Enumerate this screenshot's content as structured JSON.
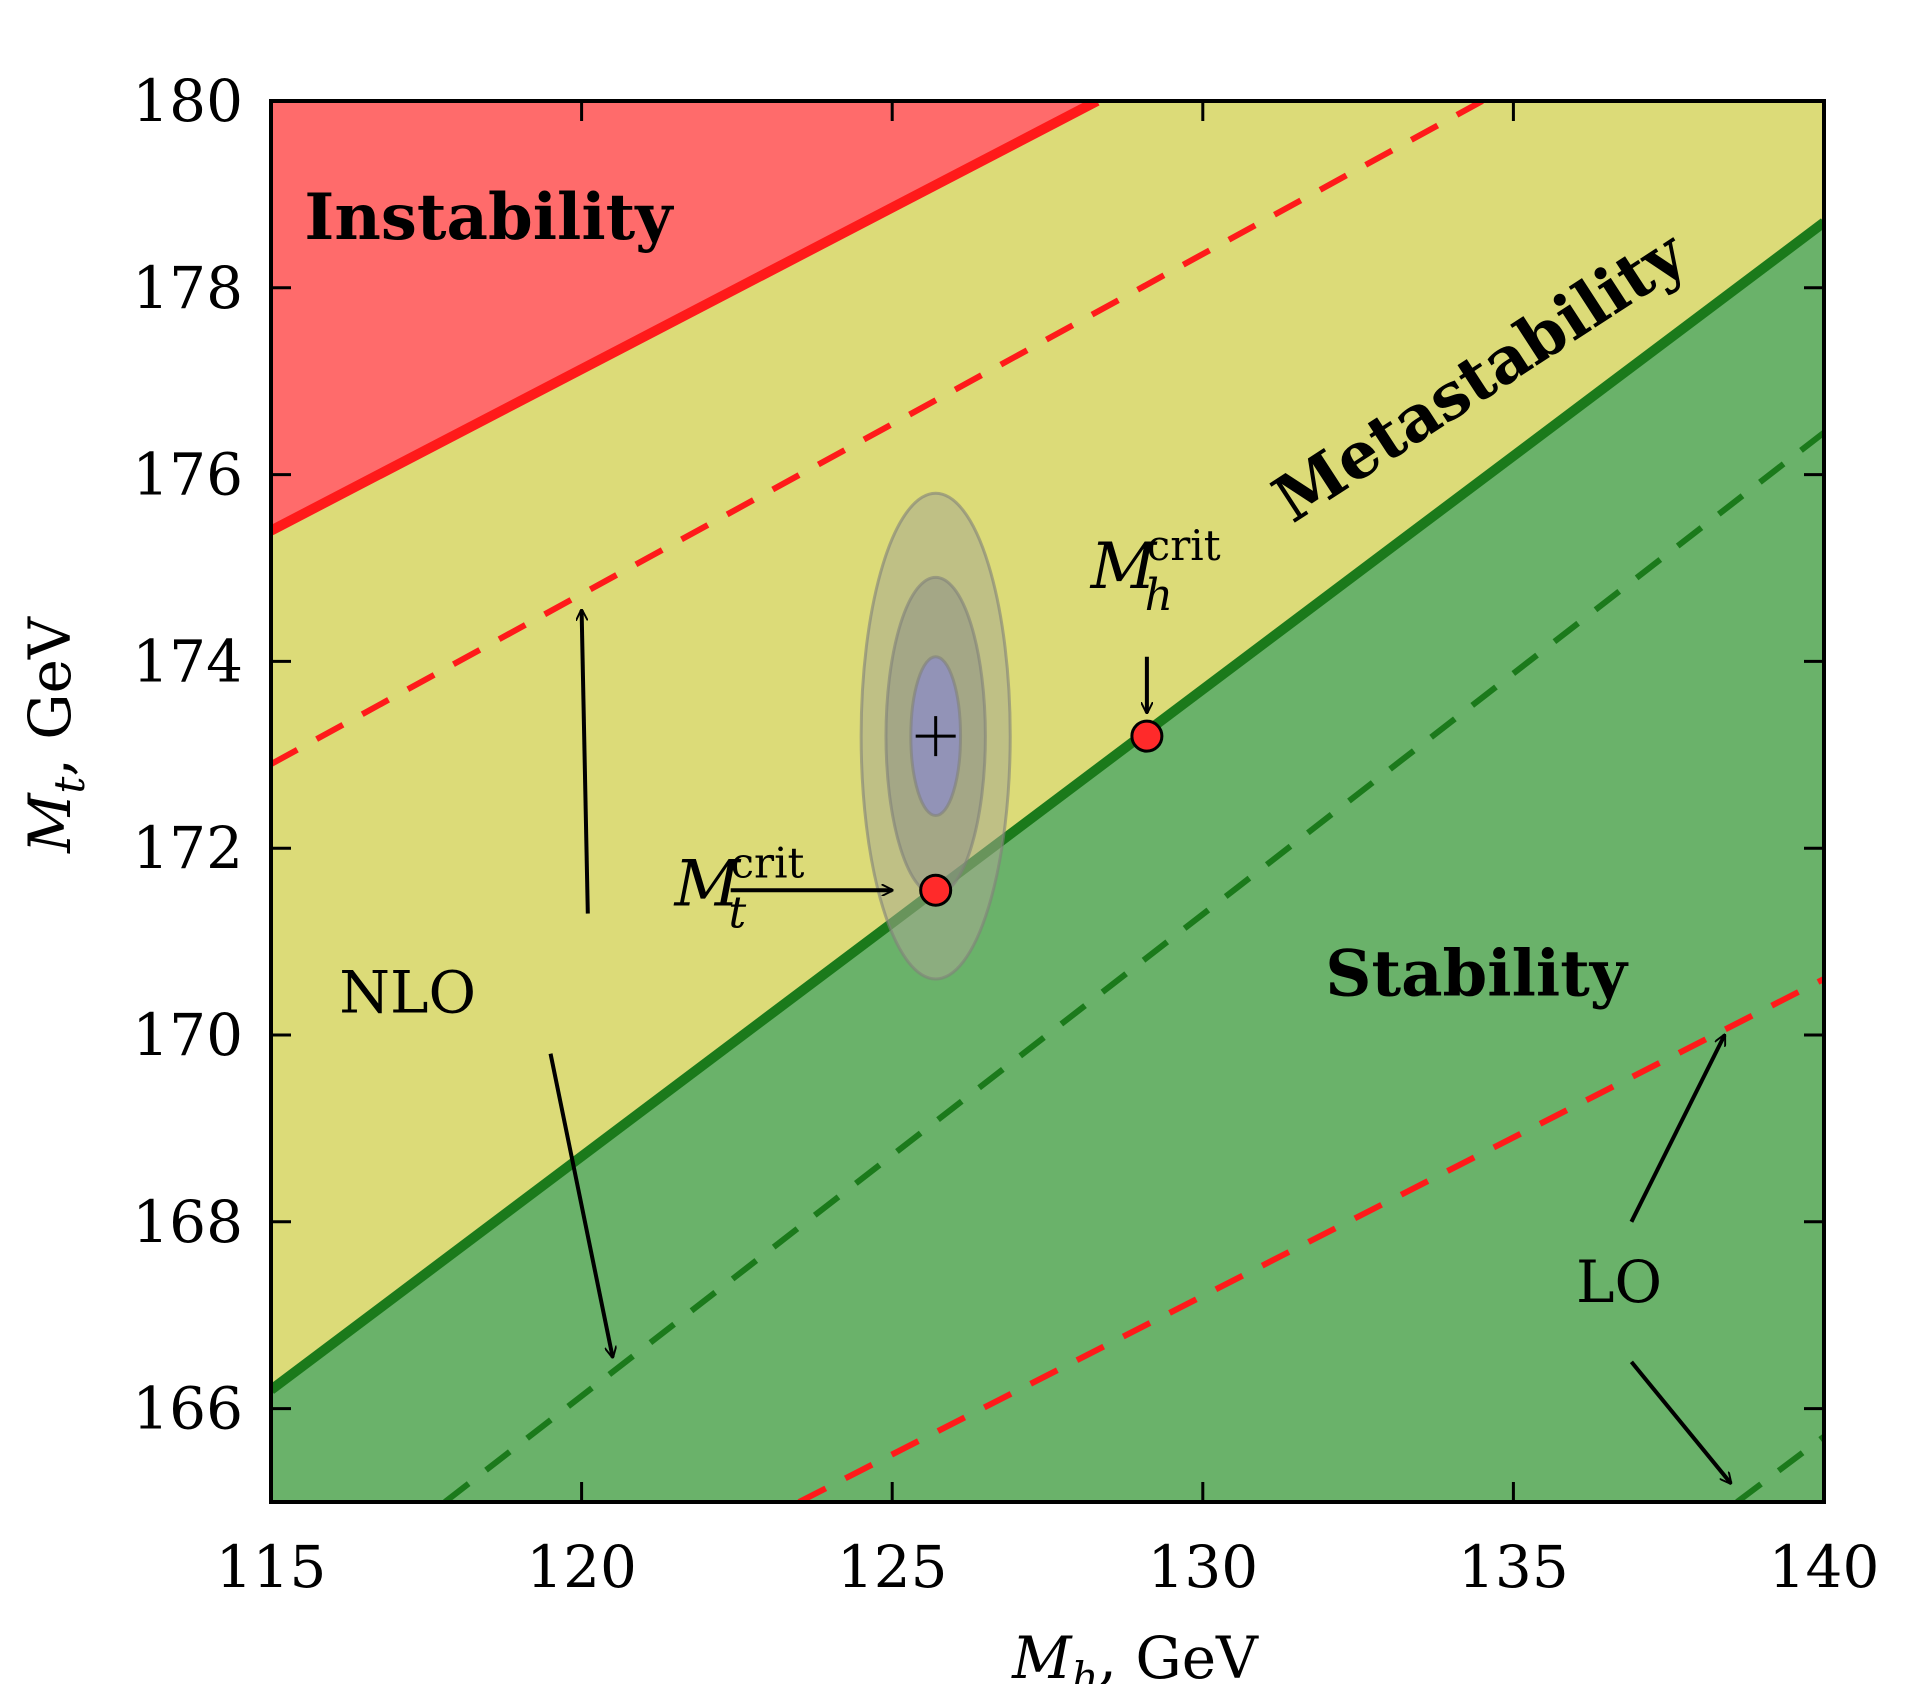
{
  "chart_data": {
    "type": "area",
    "title": "",
    "xlabel": "M_h, GeV",
    "ylabel": "M_t, GeV",
    "x_label_parts": {
      "symbol": "M",
      "subscript": "h",
      "unit": ",  GeV"
    },
    "y_label_parts": {
      "symbol": "M",
      "subscript": "t",
      "unit": ",  GeV"
    },
    "xlim": [
      115,
      140
    ],
    "ylim": [
      165,
      180
    ],
    "x_ticks": [
      115,
      120,
      125,
      130,
      135,
      140
    ],
    "y_ticks": [
      166,
      168,
      170,
      172,
      174,
      176,
      178,
      180
    ],
    "grid": false,
    "colors": {
      "instability": "#ff6b6b",
      "metastability": "#dcdb78",
      "stability": "#6ab26a",
      "red_line": "#ff1a1a",
      "green_line": "#1b7a1b",
      "ellipse_outer": "#a7a98f",
      "ellipse_mid": "#8e9186",
      "ellipse_inner": "#8f8fc0",
      "critical_point": "#ff2a2a"
    },
    "regions": [
      {
        "name": "Instability",
        "label": "Instability"
      },
      {
        "name": "Metastability",
        "label": "Metastability"
      },
      {
        "name": "Stability",
        "label": "Stability"
      }
    ],
    "lines": [
      {
        "id": "instability-boundary",
        "style": "solid",
        "color_key": "red_line",
        "x": [
          115,
          128.3
        ],
        "y": [
          175.4,
          180.0
        ]
      },
      {
        "id": "stability-boundary",
        "style": "solid",
        "color_key": "green_line",
        "x": [
          115,
          140
        ],
        "y": [
          166.2,
          178.7
        ]
      },
      {
        "id": "instability-nlo",
        "style": "dashed",
        "color_key": "red_line",
        "x": [
          115,
          134.5
        ],
        "y": [
          172.9,
          180.0
        ]
      },
      {
        "id": "instability-lo",
        "style": "dashed",
        "color_key": "red_line",
        "x": [
          123.5,
          140
        ],
        "y": [
          165.0,
          170.6
        ]
      },
      {
        "id": "stability-nlo",
        "style": "dashed",
        "color_key": "green_line",
        "x": [
          117.8,
          140
        ],
        "y": [
          165.0,
          176.45
        ]
      },
      {
        "id": "stability-lo",
        "style": "dashed",
        "color_key": "green_line",
        "x": [
          138.6,
          140
        ],
        "y": [
          165.0,
          165.7
        ]
      }
    ],
    "central_value": {
      "x": 125.7,
      "y": 173.2
    },
    "ellipses": [
      {
        "sigma": 3,
        "cx": 125.7,
        "cy": 173.2,
        "rx": 1.2,
        "ry": 2.6
      },
      {
        "sigma": 2,
        "cx": 125.7,
        "cy": 173.2,
        "rx": 0.8,
        "ry": 1.7
      },
      {
        "sigma": 1,
        "cx": 125.7,
        "cy": 173.2,
        "rx": 0.4,
        "ry": 0.85
      }
    ],
    "critical_points": [
      {
        "id": "mt-crit",
        "x": 125.7,
        "y": 171.55
      },
      {
        "id": "mh-crit",
        "x": 129.1,
        "y": 173.2
      }
    ],
    "annotations": [
      {
        "id": "instability-label",
        "text": "Instability",
        "x": 118.5,
        "y": 178.7
      },
      {
        "id": "metastability-label",
        "text": "Metastability",
        "x": 134.5,
        "y": 177.0,
        "rotate": -33
      },
      {
        "id": "stability-label",
        "text": "Stability",
        "x": 134.4,
        "y": 170.6
      },
      {
        "id": "nlo-label",
        "text": "NLO",
        "x": 117.2,
        "y": 170.4
      },
      {
        "id": "lo-label",
        "text": "LO",
        "x": 136.7,
        "y": 167.3
      },
      {
        "id": "mt-crit-label",
        "symbol": "M",
        "subscript": "t",
        "superscript": "crit",
        "x": 122.3,
        "y": 171.6
      },
      {
        "id": "mh-crit-label",
        "symbol": "M",
        "subscript": "h",
        "superscript": "crit",
        "x": 129.0,
        "y": 175.0
      }
    ],
    "arrows": [
      {
        "id": "arrow-nlo-up",
        "from": [
          120.1,
          171.3
        ],
        "to": [
          120.0,
          174.55
        ]
      },
      {
        "id": "arrow-nlo-down",
        "from": [
          119.5,
          169.8
        ],
        "to": [
          120.5,
          166.55
        ]
      },
      {
        "id": "arrow-lo-up",
        "from": [
          136.9,
          168.0
        ],
        "to": [
          138.4,
          170.0
        ]
      },
      {
        "id": "arrow-lo-down",
        "from": [
          136.9,
          166.5
        ],
        "to": [
          138.5,
          165.2
        ]
      },
      {
        "id": "arrow-mt-crit",
        "from": [
          122.4,
          171.55
        ],
        "to": [
          125.0,
          171.55
        ]
      },
      {
        "id": "arrow-mh-crit",
        "from": [
          129.1,
          174.05
        ],
        "to": [
          129.1,
          173.45
        ]
      }
    ]
  }
}
